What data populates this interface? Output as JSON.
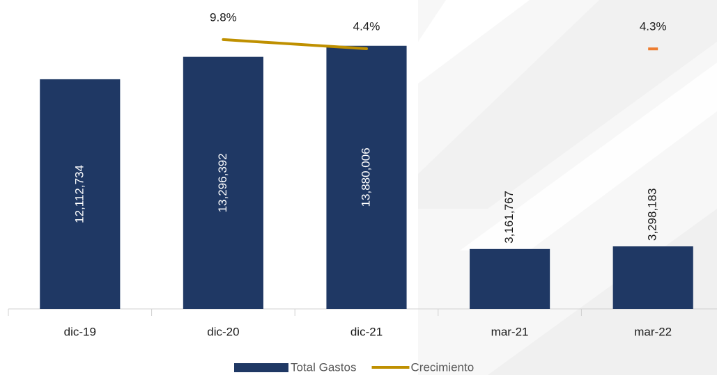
{
  "chart_data": {
    "type": "bar",
    "categories": [
      "dic-19",
      "dic-20",
      "dic-21",
      "mar-21",
      "mar-22"
    ],
    "series": [
      {
        "name": "Total Gastos",
        "type": "bar",
        "color": "#1f3864",
        "values": [
          12112734,
          13296392,
          13880006,
          3161767,
          3298183
        ],
        "value_labels": [
          "12,112,734",
          "13,296,392",
          "13,880,006",
          "3,161,767",
          "3,298,183"
        ]
      },
      {
        "name": "Crecimiento",
        "type": "line",
        "axis": "y2",
        "color": "#bf9000",
        "marker_color": "#ed7d31",
        "values": [
          null,
          9.8,
          4.4,
          null,
          4.3
        ],
        "value_labels": [
          null,
          "9.8%",
          "4.4%",
          null,
          "4.3%"
        ]
      }
    ],
    "ylim": [
      0,
      16000000
    ],
    "y2lim": [
      -150,
      30
    ],
    "legend": "bottom",
    "grid": false
  }
}
